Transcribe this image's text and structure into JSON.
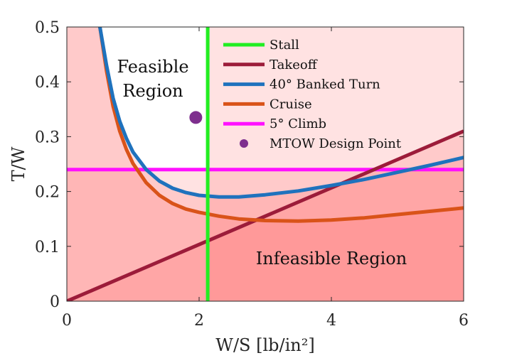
{
  "chart_data": {
    "type": "line",
    "xlabel": "W/S [lb/in²]",
    "ylabel": "T/W",
    "xlim": [
      0,
      6
    ],
    "ylim": [
      0,
      0.5
    ],
    "xticks": [
      "0",
      "2",
      "4",
      "6"
    ],
    "yticks": [
      "0",
      "0.1",
      "0.2",
      "0.3",
      "0.4",
      "0.5"
    ],
    "grid": false,
    "legend_position": "top-right",
    "annotations": [
      {
        "text": "Feasible",
        "x": 1.32,
        "y": 0.428
      },
      {
        "text": "Region",
        "x": 1.32,
        "y": 0.383
      },
      {
        "text": "Infeasible Region",
        "x": 4.0,
        "y": 0.075
      }
    ],
    "series": [
      {
        "name": "Stall",
        "kind": "vline",
        "color": "#22ee22",
        "x": 2.13
      },
      {
        "name": "Takeoff",
        "kind": "line",
        "color": "#9c1c3a",
        "x": [
          0,
          6
        ],
        "y": [
          0,
          0.31
        ]
      },
      {
        "name": "40° Banked Turn",
        "kind": "curve",
        "color": "#1f72bd",
        "x": [
          0.5,
          0.6,
          0.7,
          0.8,
          0.9,
          1.0,
          1.2,
          1.4,
          1.6,
          1.8,
          2.0,
          2.3,
          2.6,
          3.0,
          3.5,
          4.0,
          4.5,
          5.0,
          5.5,
          6.0
        ],
        "y": [
          0.5,
          0.43,
          0.37,
          0.328,
          0.297,
          0.272,
          0.24,
          0.219,
          0.206,
          0.198,
          0.193,
          0.19,
          0.19,
          0.194,
          0.201,
          0.211,
          0.222,
          0.235,
          0.248,
          0.262
        ]
      },
      {
        "name": "Cruise",
        "kind": "curve",
        "color": "#d95319",
        "x": [
          0.5,
          0.6,
          0.7,
          0.8,
          0.9,
          1.0,
          1.2,
          1.4,
          1.6,
          1.8,
          2.0,
          2.3,
          2.6,
          3.0,
          3.5,
          4.0,
          4.5,
          5.0,
          5.5,
          6.0
        ],
        "y": [
          0.5,
          0.42,
          0.355,
          0.31,
          0.277,
          0.251,
          0.216,
          0.193,
          0.178,
          0.168,
          0.162,
          0.155,
          0.15,
          0.147,
          0.146,
          0.148,
          0.152,
          0.158,
          0.164,
          0.17
        ]
      },
      {
        "name": "5° Climb",
        "kind": "hline",
        "color": "#ff11ff",
        "y": 0.24
      },
      {
        "name": "MTOW Design Point",
        "kind": "point",
        "color": "#7e2f8e",
        "x": 1.95,
        "y": 0.335
      }
    ],
    "legend": [
      "Stall",
      "Takeoff",
      "40° Banked Turn",
      "Cruise",
      "5° Climb",
      "MTOW Design Point"
    ]
  }
}
